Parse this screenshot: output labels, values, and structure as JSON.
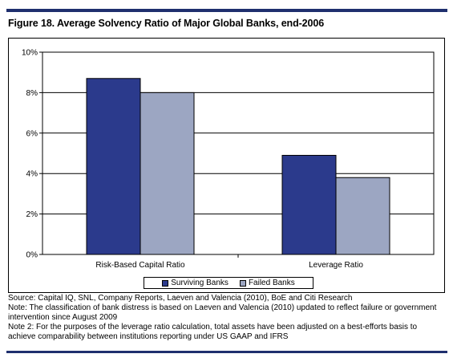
{
  "figure_title": "Figure 18. Average Solvency Ratio of Major Global Banks, end-2006",
  "notes": {
    "source": "Source: Capital IQ, SNL, Company Reports, Laeven and Valencia (2010), BoE and Citi Research",
    "note1": "Note: The classification of bank distress is based on Laeven and Valencia (2010) updated to reflect failure or government intervention since August 2009",
    "note2": "Note 2: For the purposes of the leverage ratio calculation, total assets have been adjusted on a best-efforts basis to achieve comparability between institutions reporting under US GAAP and IFRS"
  },
  "colors": {
    "rule": "#1f2f6e",
    "surviving": "#2b3a8c",
    "failed": "#9ca6c2"
  },
  "chart_data": {
    "type": "bar",
    "categories": [
      "Risk-Based Capital Ratio",
      "Leverage Ratio"
    ],
    "series": [
      {
        "name": "Surviving Banks",
        "values": [
          8.7,
          4.9
        ]
      },
      {
        "name": "Failed Banks",
        "values": [
          8.0,
          3.8
        ]
      }
    ],
    "ylim": [
      0,
      10
    ],
    "yticks": [
      "0%",
      "2%",
      "4%",
      "6%",
      "8%",
      "10%"
    ],
    "ytick_values": [
      0,
      2,
      4,
      6,
      8,
      10
    ],
    "grid": true,
    "legend_position": "bottom-center"
  }
}
